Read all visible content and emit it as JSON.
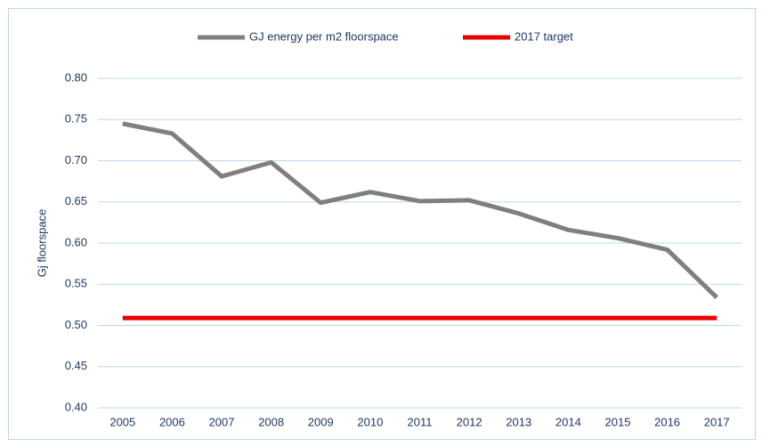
{
  "chart_data": {
    "type": "line",
    "y_label": "Gj floorspace",
    "categories": [
      "2005",
      "2006",
      "2007",
      "2008",
      "2009",
      "2010",
      "2011",
      "2012",
      "2013",
      "2014",
      "2015",
      "2016",
      "2017"
    ],
    "series": [
      {
        "name": "GJ energy per m2 floorspace",
        "color": "#7f7f7f",
        "values": [
          0.745,
          0.733,
          0.681,
          0.698,
          0.649,
          0.662,
          0.651,
          0.652,
          0.636,
          0.616,
          0.606,
          0.592,
          0.534
        ]
      },
      {
        "name": "2017 target",
        "color": "#e60000",
        "values": [
          0.509,
          0.509,
          0.509,
          0.509,
          0.509,
          0.509,
          0.509,
          0.509,
          0.509,
          0.509,
          0.509,
          0.509,
          0.509
        ]
      }
    ],
    "ylim": [
      0.4,
      0.8
    ],
    "yticks": [
      {
        "value": 0.4,
        "label": "0.40"
      },
      {
        "value": 0.45,
        "label": "0.45"
      },
      {
        "value": 0.5,
        "label": "0.50"
      },
      {
        "value": 0.55,
        "label": "0.55"
      },
      {
        "value": 0.6,
        "label": "0.60"
      },
      {
        "value": 0.65,
        "label": "0.65"
      },
      {
        "value": 0.7,
        "label": "0.70"
      },
      {
        "value": 0.75,
        "label": "0.75"
      },
      {
        "value": 0.8,
        "label": "0.80"
      }
    ],
    "grid": true,
    "legend": "top"
  }
}
